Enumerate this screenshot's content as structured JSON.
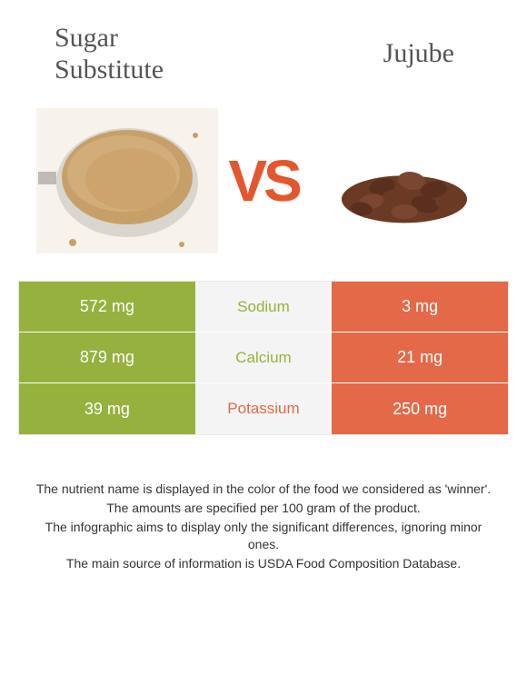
{
  "colors": {
    "left": "#96b13d",
    "right": "#e36948",
    "mid_bg": "#f4f4f4",
    "vs": "#e4572e",
    "title": "#555555",
    "note": "#333333"
  },
  "foods": {
    "left": {
      "name": "Sugar Substitute"
    },
    "right": {
      "name": "Jujube"
    }
  },
  "vs_text": "VS",
  "nutrients": [
    {
      "name": "Sodium",
      "left_value": "572 mg",
      "right_value": "3 mg",
      "winner": "left"
    },
    {
      "name": "Calcium",
      "left_value": "879 mg",
      "right_value": "21 mg",
      "winner": "left"
    },
    {
      "name": "Potassium",
      "left_value": "39 mg",
      "right_value": "250 mg",
      "winner": "right"
    }
  ],
  "footnotes": [
    "The nutrient name is displayed in the color of the food we considered as 'winner'.",
    "The amounts are specified per 100 gram of the product.",
    "The infographic aims to display only the significant differences, ignoring minor ones.",
    "The main source of information is USDA Food Composition Database."
  ]
}
